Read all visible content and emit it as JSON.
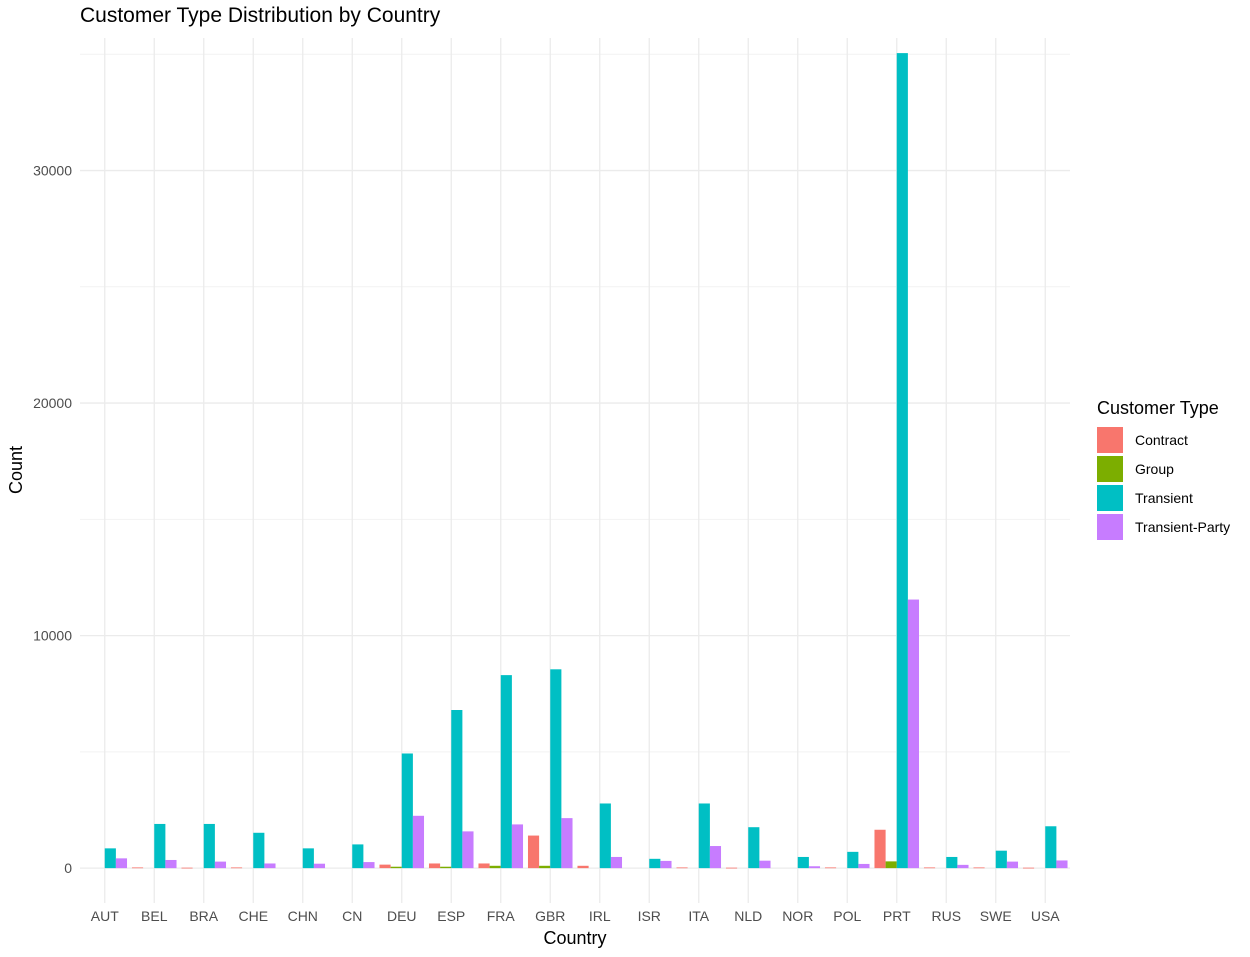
{
  "chart_data": {
    "type": "bar",
    "title": "Customer Type Distribution by Country",
    "xlabel": "Country",
    "ylabel": "Count",
    "ylim": [
      -1500,
      35700
    ],
    "yticks": [
      0,
      10000,
      20000,
      30000
    ],
    "grid": true,
    "legend_title": "Customer Type",
    "legend_position": "right",
    "categories": [
      "AUT",
      "BEL",
      "BRA",
      "CHE",
      "CHN",
      "CN",
      "DEU",
      "ESP",
      "FRA",
      "GBR",
      "IRL",
      "ISR",
      "ITA",
      "NLD",
      "NOR",
      "POL",
      "PRT",
      "RUS",
      "SWE",
      "USA"
    ],
    "series": [
      {
        "name": "Contract",
        "color": "#F8766D",
        "values": [
          0,
          30,
          20,
          30,
          0,
          0,
          150,
          200,
          200,
          1400,
          100,
          0,
          30,
          20,
          0,
          30,
          1650,
          30,
          30,
          20
        ]
      },
      {
        "name": "Group",
        "color": "#7CAE00",
        "values": [
          0,
          0,
          0,
          0,
          0,
          0,
          60,
          60,
          100,
          100,
          0,
          0,
          0,
          0,
          0,
          0,
          290,
          0,
          0,
          0
        ]
      },
      {
        "name": "Transient",
        "color": "#00BFC4",
        "values": [
          850,
          1900,
          1900,
          1520,
          850,
          1020,
          4930,
          6800,
          8300,
          8550,
          2780,
          400,
          2780,
          1760,
          480,
          700,
          35050,
          480,
          750,
          1800
        ]
      },
      {
        "name": "Transient-Party",
        "color": "#C77CFF",
        "values": [
          420,
          350,
          280,
          200,
          190,
          260,
          2250,
          1580,
          1880,
          2150,
          480,
          310,
          950,
          320,
          80,
          180,
          11550,
          140,
          280,
          330
        ]
      }
    ]
  }
}
